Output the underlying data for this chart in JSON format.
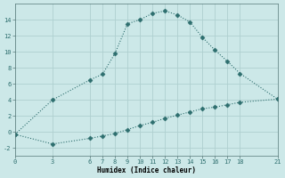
{
  "xlabel": "Humidex (Indice chaleur)",
  "background_color": "#cce8e8",
  "grid_color": "#afd0d0",
  "line_color": "#2d6e6e",
  "curve1_x": [
    0,
    3,
    6,
    7,
    8,
    9,
    10,
    11,
    12,
    13,
    14,
    15,
    16,
    17,
    18,
    21
  ],
  "curve1_y": [
    -0.3,
    4.0,
    6.5,
    7.2,
    9.8,
    13.5,
    14.0,
    14.8,
    15.1,
    14.6,
    13.7,
    11.8,
    10.2,
    8.8,
    7.3,
    4.1
  ],
  "curve2_x": [
    0,
    3,
    6,
    7,
    8,
    9,
    10,
    11,
    12,
    13,
    14,
    15,
    16,
    17,
    18,
    21
  ],
  "curve2_y": [
    -0.3,
    -1.5,
    -0.8,
    -0.5,
    -0.2,
    0.3,
    0.8,
    1.2,
    1.7,
    2.1,
    2.5,
    2.9,
    3.1,
    3.4,
    3.7,
    4.1
  ],
  "xlim": [
    0,
    21
  ],
  "ylim": [
    -3,
    16
  ],
  "xticks": [
    0,
    3,
    6,
    7,
    8,
    9,
    10,
    11,
    12,
    13,
    14,
    15,
    16,
    17,
    18,
    21
  ],
  "yticks": [
    -2,
    0,
    2,
    4,
    6,
    8,
    10,
    12,
    14
  ],
  "axis_fontsize": 5.5,
  "tick_fontsize": 5.0
}
